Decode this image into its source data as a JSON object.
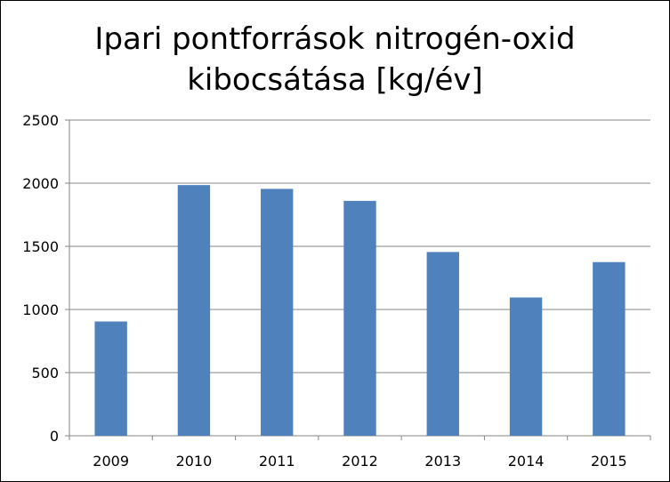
{
  "chart_data": {
    "type": "bar",
    "title_lines": [
      "Ipari pontforrások nitrogén-oxid",
      "kibocsátása [kg/év]"
    ],
    "categories": [
      "2009",
      "2010",
      "2011",
      "2012",
      "2013",
      "2014",
      "2015"
    ],
    "values": [
      905,
      1985,
      1955,
      1860,
      1455,
      1095,
      1375
    ],
    "xlabel": "",
    "ylabel": "",
    "ylim": [
      0,
      2500
    ],
    "yticks": [
      0,
      500,
      1000,
      1500,
      2000,
      2500
    ],
    "grid": "horizontal",
    "legend": "none",
    "bar_color": "#4F81BD"
  }
}
